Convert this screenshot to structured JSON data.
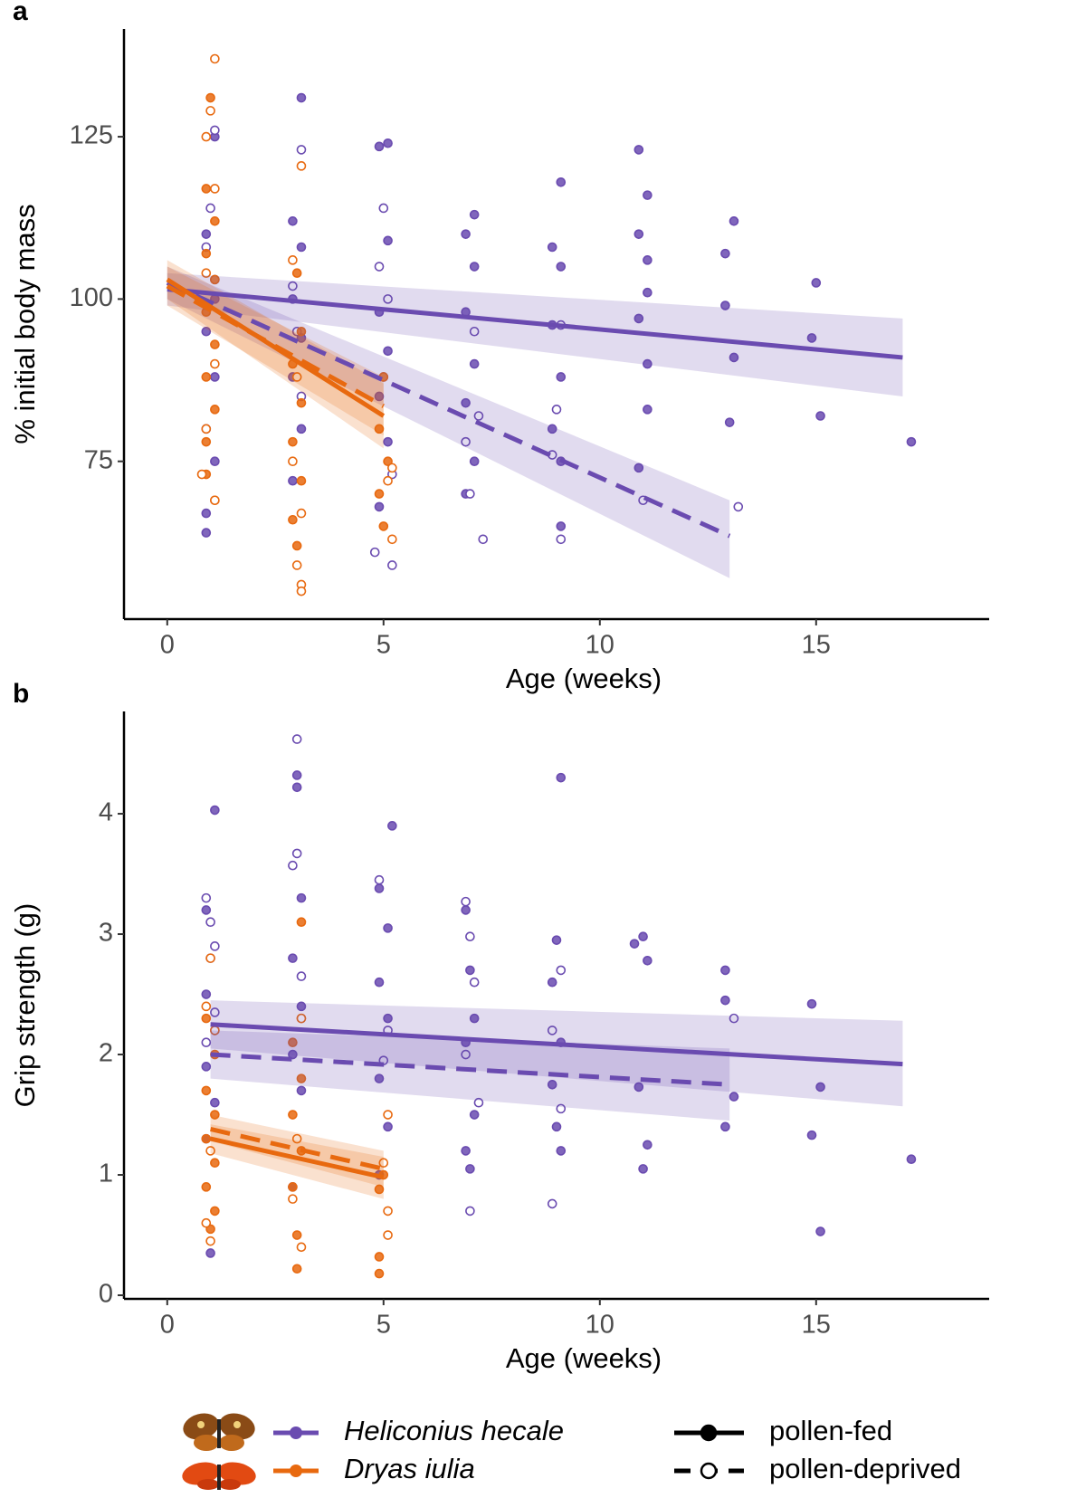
{
  "chart_data": [
    {
      "type": "scatter",
      "title": "a",
      "x_label": "Age (weeks)",
      "y_label": "% initial body mass",
      "xlim": [
        -1,
        19
      ],
      "ylim": [
        50.7,
        141.6
      ],
      "xticks": [
        0,
        5,
        10,
        15
      ],
      "yticks": [
        75,
        100,
        125
      ],
      "series": [
        {
          "species": 0,
          "diet": 0,
          "x": [
            1.1,
            0.9,
            1.1,
            0.9,
            1.1,
            0.9,
            1.1,
            0.9,
            0.9,
            3.1,
            2.9,
            3.1,
            2.9,
            3.1,
            2.9,
            3.1,
            2.9,
            5.1,
            4.9,
            5.1,
            4.9,
            5.1,
            4.9,
            5.1,
            4.9,
            7.1,
            6.9,
            7.1,
            6.9,
            7.1,
            6.9,
            7.1,
            6.9,
            9.1,
            8.9,
            9.1,
            8.9,
            9.1,
            8.9,
            9.1,
            9.1,
            10.9,
            11.1,
            10.9,
            11.1,
            11.1,
            10.9,
            11.1,
            11.1,
            10.9,
            13.1,
            12.9,
            12.9,
            13.1,
            13.0,
            15.0,
            14.9,
            15.1,
            17.2
          ],
          "values": [
            125,
            110,
            100,
            95,
            88,
            80,
            75,
            67,
            64,
            131,
            112,
            108,
            100,
            94,
            88,
            80,
            72,
            124,
            123.5,
            109,
            98,
            92,
            85,
            78,
            68,
            113,
            110,
            105,
            98,
            90,
            84,
            75,
            70,
            118,
            108,
            105,
            96,
            88,
            80,
            75,
            65,
            123,
            116,
            110,
            106,
            101,
            97,
            90,
            83,
            74,
            112,
            107,
            99,
            91,
            81,
            102.5,
            94,
            82,
            78
          ],
          "fit": {
            "x": [
              0,
              17
            ],
            "values": [
              101.5,
              91
            ],
            "band_low": [
              99,
              85
            ],
            "band_high": [
              104,
              97
            ]
          }
        },
        {
          "species": 0,
          "diet": 1,
          "x": [
            1.1,
            1.0,
            0.9,
            1.1,
            3.1,
            2.9,
            3.0,
            3.1,
            5.0,
            4.9,
            5.1,
            5.0,
            5.2,
            4.8,
            5.2,
            7.1,
            7.2,
            6.9,
            7.0,
            7.3,
            9.1,
            9.0,
            8.9,
            9.1,
            11.0,
            13.2
          ],
          "values": [
            126,
            114,
            108,
            103,
            123,
            102,
            95,
            85,
            114,
            105,
            100,
            88,
            73,
            61,
            59,
            95,
            82,
            78,
            70,
            63,
            96,
            83,
            76,
            63,
            69,
            68
          ],
          "fit": {
            "x": [
              0,
              13
            ],
            "values": [
              102.5,
              63.5
            ],
            "band_low": [
              100,
              57
            ],
            "band_high": [
              105,
              69
            ]
          }
        },
        {
          "species": 1,
          "diet": 0,
          "x": [
            1.0,
            0.9,
            1.1,
            0.9,
            1.1,
            0.9,
            1.1,
            0.9,
            1.1,
            0.9,
            0.9,
            1.1,
            3.0,
            3.1,
            2.9,
            3.1,
            2.9,
            3.1,
            2.9,
            3.0,
            5.0,
            4.9,
            5.1,
            4.9,
            5.0
          ],
          "values": [
            131,
            117,
            112,
            107,
            103,
            98,
            93,
            88,
            83,
            78,
            73,
            69,
            104,
            95,
            90,
            84,
            78,
            72,
            66,
            62,
            88,
            80,
            75,
            70,
            65
          ],
          "fit": {
            "x": [
              0,
              5
            ],
            "values": [
              103,
              82
            ],
            "band_low": [
              100,
              77
            ],
            "band_high": [
              106,
              87
            ]
          }
        },
        {
          "species": 1,
          "diet": 1,
          "x": [
            1.1,
            1.0,
            0.9,
            1.1,
            0.9,
            1.1,
            0.9,
            0.8,
            1.1,
            3.1,
            2.9,
            3.0,
            2.9,
            3.1,
            3.0,
            3.1,
            3.1,
            5.2,
            5.1,
            5.2
          ],
          "values": [
            137,
            129,
            125,
            117,
            104,
            90,
            80,
            73,
            69,
            120.5,
            106,
            88,
            75,
            67,
            59,
            56,
            55,
            74,
            72,
            63
          ],
          "fit": {
            "x": [
              0,
              5
            ],
            "values": [
              102,
              83.5
            ],
            "band_low": [
              99,
              79
            ],
            "band_high": [
              105,
              88
            ]
          }
        }
      ]
    },
    {
      "type": "scatter",
      "title": "b",
      "x_label": "Age (weeks)",
      "y_label": "Grip strength (g)",
      "xlim": [
        -1,
        19
      ],
      "ylim": [
        -0.03,
        4.85
      ],
      "xticks": [
        0,
        5,
        10,
        15
      ],
      "yticks": [
        0,
        1,
        2,
        3,
        4
      ],
      "series": [
        {
          "species": 0,
          "diet": 0,
          "x": [
            1.1,
            0.9,
            1.0,
            0.9,
            1.1,
            0.9,
            1.1,
            0.9,
            1.0,
            3.0,
            3.0,
            3.1,
            2.9,
            3.1,
            2.9,
            3.1,
            2.9,
            5.2,
            4.9,
            5.1,
            4.9,
            5.1,
            4.9,
            5.1,
            4.9,
            6.9,
            7.0,
            7.1,
            6.9,
            7.1,
            6.9,
            7.0,
            9.1,
            9.0,
            8.9,
            9.1,
            8.9,
            9.0,
            9.1,
            10.8,
            11.0,
            11.1,
            10.9,
            11.1,
            11.0,
            12.9,
            12.9,
            13.1,
            12.9,
            14.9,
            14.9,
            15.1,
            15.1,
            17.2
          ],
          "values": [
            4.03,
            3.2,
            2.8,
            2.5,
            2.2,
            1.9,
            1.6,
            1.3,
            0.35,
            4.32,
            4.22,
            3.3,
            2.8,
            2.4,
            2.0,
            1.7,
            0.9,
            3.9,
            3.38,
            3.05,
            2.6,
            2.3,
            1.8,
            1.4,
            1.0,
            3.2,
            2.7,
            2.3,
            2.1,
            1.5,
            1.2,
            1.05,
            4.3,
            2.95,
            2.6,
            2.1,
            1.75,
            1.4,
            1.2,
            2.92,
            2.98,
            2.78,
            1.73,
            1.25,
            1.05,
            2.7,
            2.45,
            1.65,
            1.4,
            2.42,
            1.33,
            0.53,
            1.73,
            1.13
          ],
          "fit": {
            "x": [
              1,
              17
            ],
            "values": [
              2.25,
              1.92
            ],
            "band_low": [
              2.05,
              1.57
            ],
            "band_high": [
              2.45,
              2.28
            ]
          }
        },
        {
          "species": 0,
          "diet": 1,
          "x": [
            0.9,
            1.0,
            1.1,
            1.1,
            0.9,
            3.0,
            3.0,
            2.9,
            3.1,
            4.9,
            5.1,
            5.0,
            6.9,
            7.0,
            7.1,
            6.9,
            7.2,
            7.0,
            9.1,
            8.9,
            9.1,
            8.9,
            13.1
          ],
          "values": [
            3.3,
            3.1,
            2.9,
            2.35,
            2.1,
            4.62,
            3.67,
            3.57,
            2.65,
            3.45,
            2.2,
            1.95,
            3.27,
            2.98,
            2.6,
            2.0,
            1.6,
            0.7,
            2.7,
            2.2,
            1.55,
            0.76,
            2.3
          ],
          "fit": {
            "x": [
              1,
              13
            ],
            "values": [
              2.0,
              1.75
            ],
            "band_low": [
              1.8,
              1.45
            ],
            "band_high": [
              2.2,
              2.05
            ]
          }
        },
        {
          "species": 1,
          "diet": 0,
          "x": [
            0.9,
            1.1,
            0.9,
            1.1,
            0.9,
            1.1,
            0.9,
            1.1,
            1.0,
            3.1,
            3.1,
            2.9,
            3.1,
            2.9,
            3.1,
            2.9,
            3.0,
            3.0,
            5.0,
            4.9,
            4.9,
            4.9
          ],
          "values": [
            2.3,
            2.0,
            1.7,
            1.5,
            1.3,
            1.1,
            0.9,
            0.7,
            0.55,
            3.1,
            2.3,
            2.1,
            1.8,
            1.5,
            1.2,
            0.9,
            0.5,
            0.22,
            1.0,
            0.88,
            0.32,
            0.18
          ],
          "fit": {
            "x": [
              1,
              5
            ],
            "values": [
              1.3,
              0.98
            ],
            "band_low": [
              1.18,
              0.8
            ],
            "band_high": [
              1.42,
              1.15
            ]
          }
        },
        {
          "species": 1,
          "diet": 1,
          "x": [
            1.0,
            0.9,
            1.1,
            1.0,
            0.9,
            1.0,
            3.1,
            3.0,
            2.9,
            3.1,
            5.1,
            5.0,
            5.1,
            5.1
          ],
          "values": [
            2.8,
            2.4,
            2.2,
            1.2,
            0.6,
            0.45,
            2.3,
            1.3,
            0.8,
            0.4,
            1.5,
            1.1,
            0.7,
            0.5
          ],
          "fit": {
            "x": [
              1,
              5
            ],
            "values": [
              1.38,
              1.05
            ],
            "band_low": [
              1.28,
              0.9
            ],
            "band_high": [
              1.5,
              1.2
            ]
          }
        }
      ]
    }
  ],
  "legend": {
    "species": [
      {
        "name": "Heliconius hecale",
        "color": "#6a4bb0"
      },
      {
        "name": "Dryas iulia",
        "color": "#e8690f"
      }
    ],
    "diet": [
      {
        "name": "pollen-fed",
        "dashed": false,
        "filled": true
      },
      {
        "name": "pollen-deprived",
        "dashed": true,
        "filled": false
      }
    ]
  }
}
